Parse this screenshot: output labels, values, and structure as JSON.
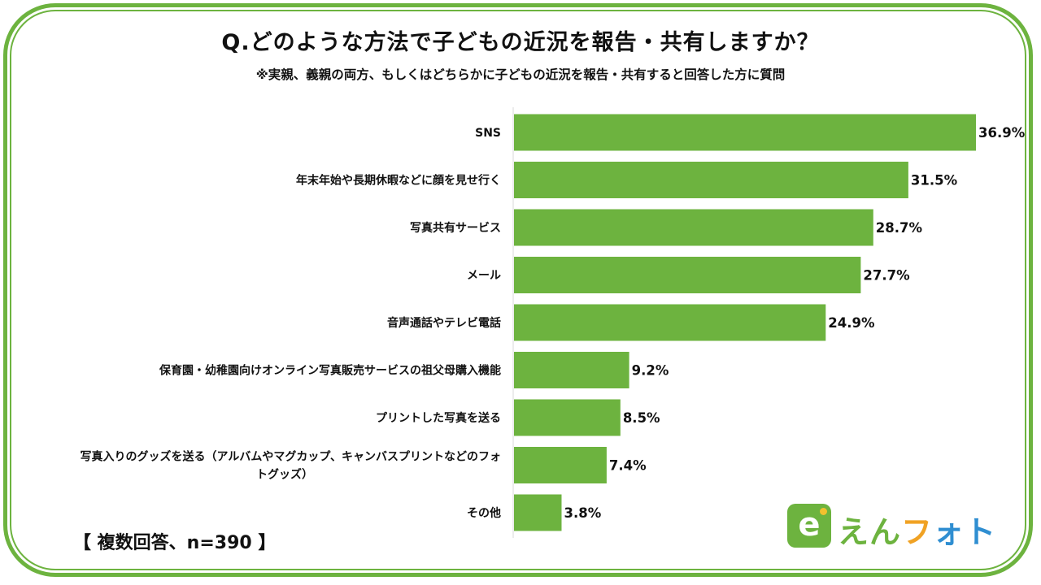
{
  "title": "Q.どのような方法で子どもの近況を報告・共有しますか？",
  "subtitle": "※実親、義親の両方、もしくはどちらかに子どもの近況を報告・共有すると回答した方に質問",
  "note": "【 複数回答、n=390 】",
  "logo": {
    "icon_name": "e-camera-icon",
    "text_parts": [
      "え",
      "ん",
      "フ",
      "ォ",
      "ト"
    ],
    "colors": [
      "#6db33f",
      "#6db33f",
      "#f0a224",
      "#2f8ed1",
      "#2f8ed1"
    ]
  },
  "colors": {
    "bar": "#6db33f",
    "frame": "#6db33f"
  },
  "chart_data": {
    "type": "bar",
    "orientation": "horizontal",
    "categories": [
      [
        "SNS"
      ],
      [
        "年末年始や長期休暇などに顔を見せ行く"
      ],
      [
        "写真共有サービス"
      ],
      [
        "メール"
      ],
      [
        "音声通話やテレビ電話"
      ],
      [
        "保育園・幼稚園向けオンライン写真販売サービスの祖父母購入機能"
      ],
      [
        "プリントした写真を送る"
      ],
      [
        "写真入りのグッズを送る（アルバムやマグカップ、キャンバスプリントなどのフォ",
        "トグッズ）"
      ],
      [
        "その他"
      ]
    ],
    "values": [
      36.9,
      31.5,
      28.7,
      27.7,
      24.9,
      9.2,
      8.5,
      7.4,
      3.8
    ],
    "value_labels": [
      "36.9%",
      "31.5%",
      "28.7%",
      "27.7%",
      "24.9%",
      "9.2%",
      "8.5%",
      "7.4%",
      "3.8%"
    ],
    "xlim": [
      0,
      40
    ],
    "grid": false,
    "legend": "none"
  }
}
